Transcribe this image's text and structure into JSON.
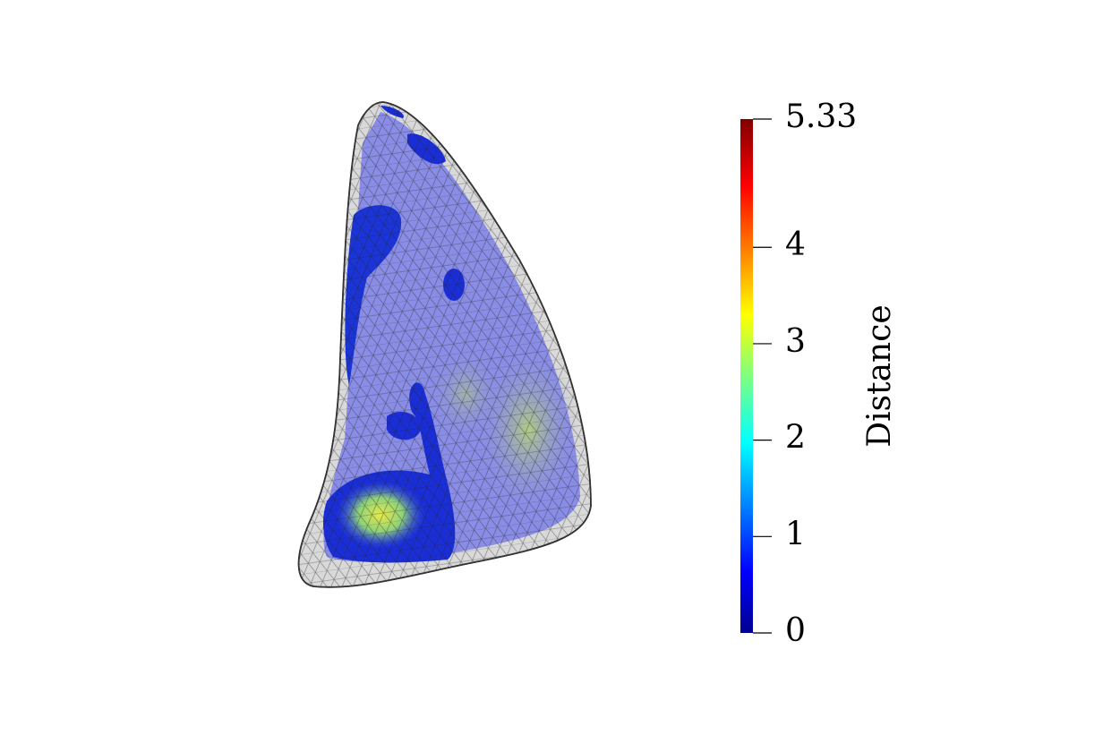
{
  "colorbar": {
    "title": "Distance",
    "range": [
      0,
      5.33
    ],
    "ticks": [
      0,
      1,
      2,
      3,
      4,
      5.33
    ]
  }
}
